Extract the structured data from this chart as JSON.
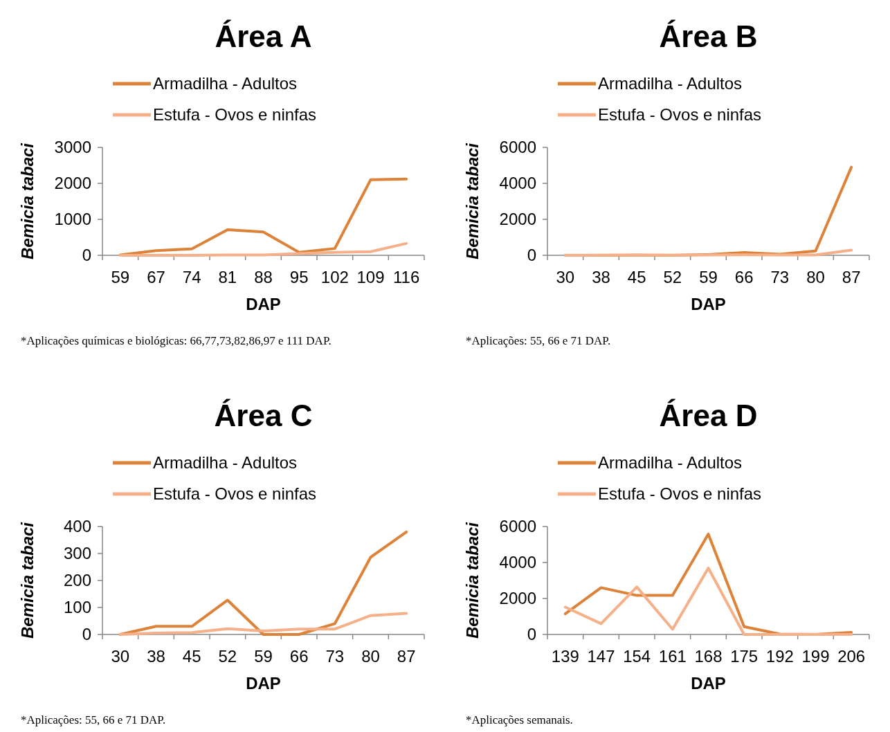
{
  "chart_data": [
    {
      "type": "line",
      "title": "Área A",
      "xlabel": "DAP",
      "ylabel": "Bemicia tabaci",
      "categories": [
        "59",
        "67",
        "74",
        "81",
        "88",
        "95",
        "102",
        "109",
        "116"
      ],
      "series": [
        {
          "name": "Armadilha - Adultos",
          "color": "#dd8239",
          "values": [
            10,
            130,
            180,
            710,
            650,
            80,
            190,
            2100,
            2120
          ]
        },
        {
          "name": "Estufa - Ovos e ninfas",
          "color": "#f5b08a",
          "values": [
            0,
            0,
            0,
            10,
            10,
            50,
            80,
            100,
            330
          ]
        }
      ],
      "ylim": [
        0,
        3000
      ],
      "yticks": [
        0,
        1000,
        2000,
        3000
      ],
      "grid": false,
      "legend": "top",
      "marker": "none",
      "line_style": "solid",
      "annotations": [
        "*Aplicações químicas e biológicas: 66,77,73,82,86,97 e 111 DAP."
      ]
    },
    {
      "type": "line",
      "title": "Área B",
      "xlabel": "DAP",
      "ylabel": "Bemicia tabaci",
      "categories": [
        "30",
        "38",
        "45",
        "52",
        "59",
        "66",
        "73",
        "80",
        "87"
      ],
      "series": [
        {
          "name": "Armadilha - Adultos",
          "color": "#dd8239",
          "values": [
            0,
            0,
            10,
            0,
            40,
            150,
            60,
            240,
            4900
          ]
        },
        {
          "name": "Estufa - Ovos e ninfas",
          "color": "#f5b08a",
          "values": [
            0,
            10,
            20,
            10,
            20,
            30,
            20,
            20,
            290
          ]
        }
      ],
      "ylim": [
        0,
        6000
      ],
      "yticks": [
        0,
        2000,
        4000,
        6000
      ],
      "grid": false,
      "legend": "top",
      "marker": "none",
      "line_style": "solid",
      "annotations": [
        "*Aplicações: 55, 66 e 71 DAP."
      ]
    },
    {
      "type": "line",
      "title": "Área C",
      "xlabel": "DAP",
      "ylabel": "Bemicia tabaci",
      "categories": [
        "30",
        "38",
        "45",
        "52",
        "59",
        "66",
        "73",
        "80",
        "87"
      ],
      "series": [
        {
          "name": "Armadilha - Adultos",
          "color": "#dd8239",
          "values": [
            0,
            30,
            30,
            127,
            0,
            0,
            40,
            286,
            380
          ]
        },
        {
          "name": "Estufa - Ovos e ninfas",
          "color": "#f5b08a",
          "values": [
            0,
            5,
            7,
            21,
            13,
            20,
            20,
            70,
            78
          ]
        }
      ],
      "ylim": [
        0,
        400
      ],
      "yticks": [
        0,
        100,
        200,
        300,
        400
      ],
      "grid": false,
      "legend": "top",
      "marker": "none",
      "line_style": "solid",
      "annotations": [
        "*Aplicações: 55, 66 e  71 DAP."
      ]
    },
    {
      "type": "line",
      "title": "Área D",
      "xlabel": "DAP",
      "ylabel": "Bemicia tabaci",
      "categories": [
        "139",
        "147",
        "154",
        "161",
        "168",
        "175",
        "192",
        "199",
        "206"
      ],
      "series": [
        {
          "name": "Armadilha - Adultos",
          "color": "#dd8239",
          "values": [
            1150,
            2600,
            2170,
            2170,
            5580,
            430,
            20,
            0,
            120
          ]
        },
        {
          "name": "Estufa - Ovos e ninfas",
          "color": "#f5b08a",
          "values": [
            1520,
            600,
            2640,
            290,
            3690,
            0,
            0,
            0,
            0
          ]
        }
      ],
      "ylim": [
        0,
        6000
      ],
      "yticks": [
        0,
        2000,
        4000,
        6000
      ],
      "grid": false,
      "legend": "top",
      "marker": "none",
      "line_style": "solid",
      "annotations": [
        "*Aplicações semanais."
      ]
    }
  ]
}
